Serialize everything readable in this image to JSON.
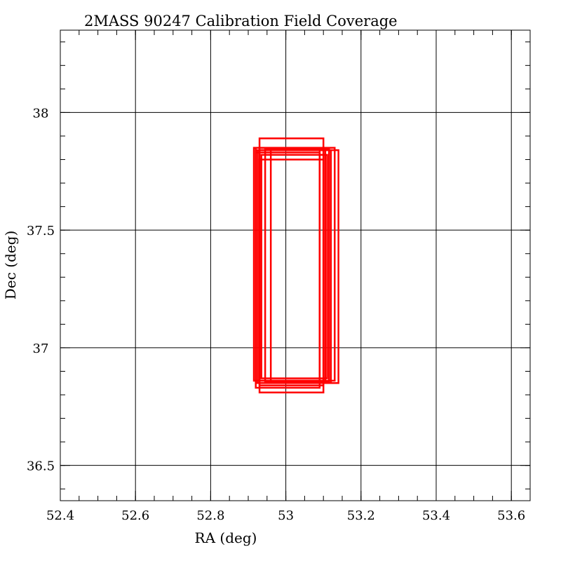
{
  "chart_data": {
    "type": "scatter",
    "title": "2MASS 90247 Calibration Field Coverage",
    "xlabel": "RA (deg)",
    "ylabel": "Dec (deg)",
    "xlim": [
      52.4,
      53.65
    ],
    "ylim": [
      36.35,
      38.35
    ],
    "x_ticks": [
      {
        "value": 52.4,
        "label": "52.4"
      },
      {
        "value": 52.6,
        "label": "52.6"
      },
      {
        "value": 52.8,
        "label": "52.8"
      },
      {
        "value": 53.0,
        "label": "53"
      },
      {
        "value": 53.2,
        "label": "53.2"
      },
      {
        "value": 53.4,
        "label": "53.4"
      },
      {
        "value": 53.6,
        "label": "53.6"
      }
    ],
    "y_ticks": [
      {
        "value": 36.5,
        "label": "36.5"
      },
      {
        "value": 37.0,
        "label": "37"
      },
      {
        "value": 37.5,
        "label": "37.5"
      },
      {
        "value": 38.0,
        "label": "38"
      }
    ],
    "x_minor_step": 0.05,
    "y_minor_step": 0.1,
    "grid": true,
    "frame_color": "#000000",
    "series_color": "#ff0000",
    "fields": [
      {
        "ra_min": 52.93,
        "ra_max": 53.1,
        "dec_min": 36.81,
        "dec_max": 37.89
      },
      {
        "ra_min": 52.92,
        "ra_max": 53.12,
        "dec_min": 36.85,
        "dec_max": 37.84
      },
      {
        "ra_min": 52.915,
        "ra_max": 53.13,
        "dec_min": 36.86,
        "dec_max": 37.85
      },
      {
        "ra_min": 52.92,
        "ra_max": 53.09,
        "dec_min": 36.83,
        "dec_max": 37.83
      },
      {
        "ra_min": 52.93,
        "ra_max": 53.1,
        "dec_min": 36.84,
        "dec_max": 37.8
      },
      {
        "ra_min": 52.925,
        "ra_max": 53.105,
        "dec_min": 36.85,
        "dec_max": 37.84
      },
      {
        "ra_min": 52.935,
        "ra_max": 53.11,
        "dec_min": 36.87,
        "dec_max": 37.82
      },
      {
        "ra_min": 52.96,
        "ra_max": 53.14,
        "dec_min": 36.85,
        "dec_max": 37.84
      },
      {
        "ra_min": 52.92,
        "ra_max": 53.1,
        "dec_min": 36.86,
        "dec_max": 37.85
      },
      {
        "ra_min": 52.93,
        "ra_max": 53.09,
        "dec_min": 36.86,
        "dec_max": 37.84
      },
      {
        "ra_min": 52.945,
        "ra_max": 53.115,
        "dec_min": 36.855,
        "dec_max": 37.845
      }
    ]
  }
}
